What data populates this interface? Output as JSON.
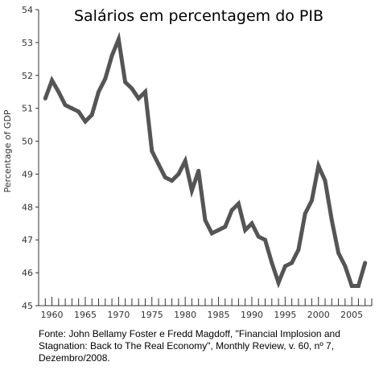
{
  "chart_data": {
    "type": "line",
    "title": "Salários em percentagem do PIB",
    "xlabel": "",
    "ylabel": "Percentage of GDP",
    "xlim": [
      1958,
      2008
    ],
    "ylim": [
      45,
      54
    ],
    "x_ticks": [
      1960,
      1965,
      1970,
      1975,
      1980,
      1985,
      1990,
      1995,
      2000,
      2005
    ],
    "y_ticks": [
      45,
      46,
      47,
      48,
      49,
      50,
      51,
      52,
      53,
      54
    ],
    "grid": false,
    "series": [
      {
        "color": "#555555",
        "x": [
          1959,
          1960,
          1961,
          1962,
          1963,
          1964,
          1965,
          1966,
          1967,
          1968,
          1969,
          1970,
          1971,
          1972,
          1973,
          1974,
          1975,
          1976,
          1977,
          1978,
          1979,
          1980,
          1981,
          1982,
          1983,
          1984,
          1985,
          1986,
          1987,
          1988,
          1989,
          1990,
          1991,
          1992,
          1993,
          1994,
          1995,
          1996,
          1997,
          1998,
          1999,
          2000,
          2001,
          2002,
          2003,
          2004,
          2005,
          2006,
          2007
        ],
        "y": [
          51.3,
          51.85,
          51.5,
          51.1,
          51.0,
          50.9,
          50.6,
          50.8,
          51.5,
          51.9,
          52.6,
          53.1,
          51.8,
          51.6,
          51.3,
          51.5,
          49.7,
          49.3,
          48.9,
          48.8,
          49.0,
          49.4,
          48.5,
          49.1,
          47.6,
          47.2,
          47.3,
          47.4,
          47.9,
          48.1,
          47.3,
          47.5,
          47.1,
          47.0,
          46.3,
          45.7,
          46.2,
          46.3,
          46.7,
          47.8,
          48.2,
          49.25,
          48.8,
          47.6,
          46.6,
          46.2,
          45.6,
          45.6,
          46.3
        ]
      }
    ]
  },
  "source": {
    "line1": "Fonte: John Bellamy Foster e Fredd Magdoff, \"Financial Implosion and",
    "line2": "Stagnation: Back to The Real Economy\", Monthly Review, v. 60, nº 7,",
    "line3": "Dezembro/2008."
  }
}
